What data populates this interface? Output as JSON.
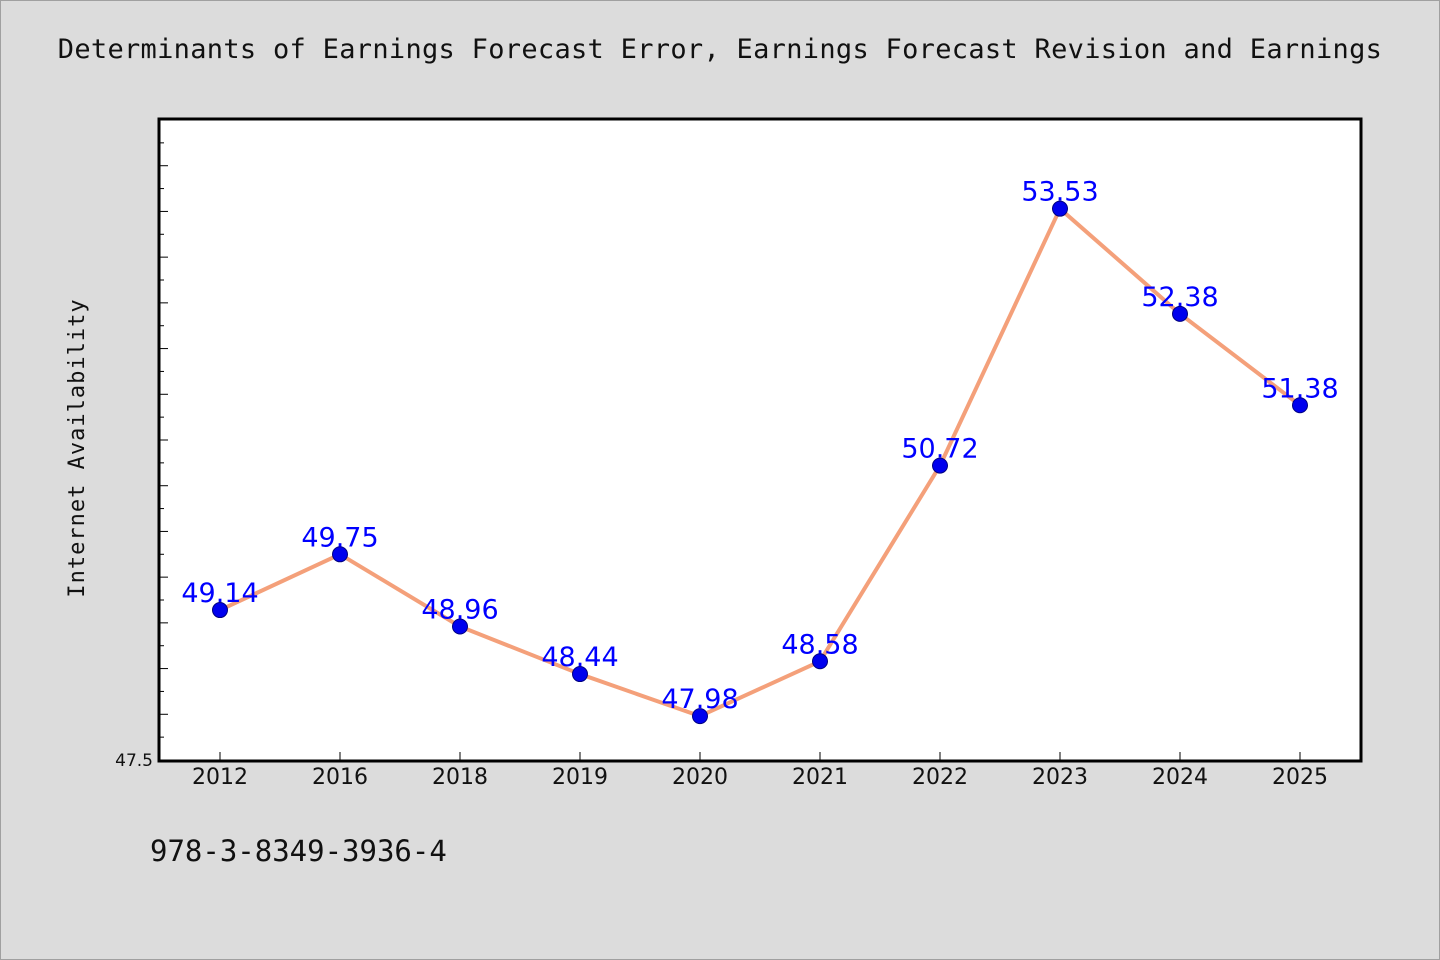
{
  "chart_data": {
    "type": "line",
    "title": "Determinants of Earnings Forecast Error, Earnings Forecast Revision and Earnings",
    "xlabel": "",
    "ylabel": "Internet Availability",
    "categories": [
      "2012",
      "2016",
      "2018",
      "2019",
      "2020",
      "2021",
      "2022",
      "2023",
      "2024",
      "2025"
    ],
    "series": [
      {
        "values": [
          49.14,
          49.75,
          48.96,
          48.44,
          47.98,
          48.58,
          50.72,
          53.53,
          52.38,
          51.38
        ],
        "labels": [
          "49.14",
          "49.75",
          "48.96",
          "48.44",
          "47.98",
          "48.58",
          "50.72",
          "53.53",
          "52.38",
          "51.38"
        ]
      }
    ],
    "ylim": [
      47.5,
      54.5
    ],
    "yticks_labeled": [
      "47.5"
    ],
    "grid": false,
    "legend": "none",
    "colors": {
      "line": "#f4a07a",
      "marker": "#0000ee",
      "marker_edge": "#000080",
      "data_label": "#0000ff",
      "plot_bg": "#ffffff",
      "figure_bg": "#dcdcdc"
    }
  },
  "footer": {
    "isbn": "978-3-8349-3936-4"
  }
}
